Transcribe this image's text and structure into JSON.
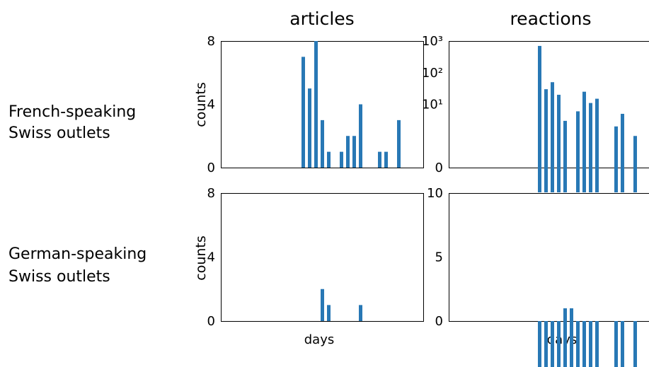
{
  "figure": {
    "col_titles": [
      "articles",
      "reactions"
    ],
    "row_labels": [
      [
        "French-speaking",
        "Swiss outlets"
      ],
      [
        "German-speaking",
        "Swiss outlets"
      ]
    ],
    "bar_color": "#2878b5"
  },
  "chart_data": [
    {
      "id": "fr-articles",
      "type": "bar",
      "title": "articles",
      "row": "French-speaking Swiss outlets",
      "ylabel": "counts",
      "xlabel": "",
      "ylim": [
        0,
        8
      ],
      "yticks": [
        "0",
        "4",
        "8"
      ],
      "x_index_range": [
        0,
        31
      ],
      "bars": [
        {
          "x": 16,
          "y": 7
        },
        {
          "x": 17,
          "y": 5
        },
        {
          "x": 18,
          "y": 8
        },
        {
          "x": 19,
          "y": 3
        },
        {
          "x": 20,
          "y": 1
        },
        {
          "x": 22,
          "y": 1
        },
        {
          "x": 23,
          "y": 2
        },
        {
          "x": 24,
          "y": 2
        },
        {
          "x": 25,
          "y": 4
        },
        {
          "x": 28,
          "y": 1
        },
        {
          "x": 29,
          "y": 1
        },
        {
          "x": 31,
          "y": 3
        }
      ]
    },
    {
      "id": "fr-reactions",
      "type": "bar",
      "title": "reactions",
      "row": "French-speaking Swiss outlets",
      "ylabel": "",
      "xlabel": "",
      "yscale": "symlog",
      "ylim": [
        0,
        1000
      ],
      "yticks": [
        "0",
        "10¹",
        "10²",
        "10³"
      ],
      "x_index_range": [
        0,
        31
      ],
      "bars": [
        {
          "x": 16,
          "y": 700
        },
        {
          "x": 17,
          "y": 30
        },
        {
          "x": 18,
          "y": 50
        },
        {
          "x": 19,
          "y": 20
        },
        {
          "x": 20,
          "y": 3
        },
        {
          "x": 22,
          "y": 6
        },
        {
          "x": 23,
          "y": 25
        },
        {
          "x": 24,
          "y": 11
        },
        {
          "x": 25,
          "y": 15
        },
        {
          "x": 28,
          "y": 2
        },
        {
          "x": 29,
          "y": 5
        },
        {
          "x": 31,
          "y": 1
        }
      ]
    },
    {
      "id": "de-articles",
      "type": "bar",
      "title": "",
      "row": "German-speaking Swiss outlets",
      "ylabel": "counts",
      "xlabel": "days",
      "ylim": [
        0,
        8
      ],
      "yticks": [
        "0",
        "4",
        "8"
      ],
      "x_index_range": [
        0,
        31
      ],
      "bars": [
        {
          "x": 19,
          "y": 2
        },
        {
          "x": 20,
          "y": 1
        },
        {
          "x": 25,
          "y": 1
        }
      ]
    },
    {
      "id": "de-reactions",
      "type": "bar",
      "title": "",
      "row": "German-speaking Swiss outlets",
      "ylabel": "",
      "xlabel": "days",
      "ylim": [
        0,
        10
      ],
      "yticks": [
        "0",
        "5",
        "10"
      ],
      "x_index_range": [
        0,
        31
      ],
      "bars": [
        {
          "x": 16,
          "y": 0
        },
        {
          "x": 17,
          "y": 0
        },
        {
          "x": 18,
          "y": 0
        },
        {
          "x": 19,
          "y": 0
        },
        {
          "x": 20,
          "y": 1
        },
        {
          "x": 21,
          "y": 1
        },
        {
          "x": 22,
          "y": 0
        },
        {
          "x": 23,
          "y": 0
        },
        {
          "x": 24,
          "y": 0
        },
        {
          "x": 25,
          "y": 0
        },
        {
          "x": 28,
          "y": 0
        },
        {
          "x": 29,
          "y": 0
        },
        {
          "x": 31,
          "y": 0
        }
      ]
    }
  ]
}
